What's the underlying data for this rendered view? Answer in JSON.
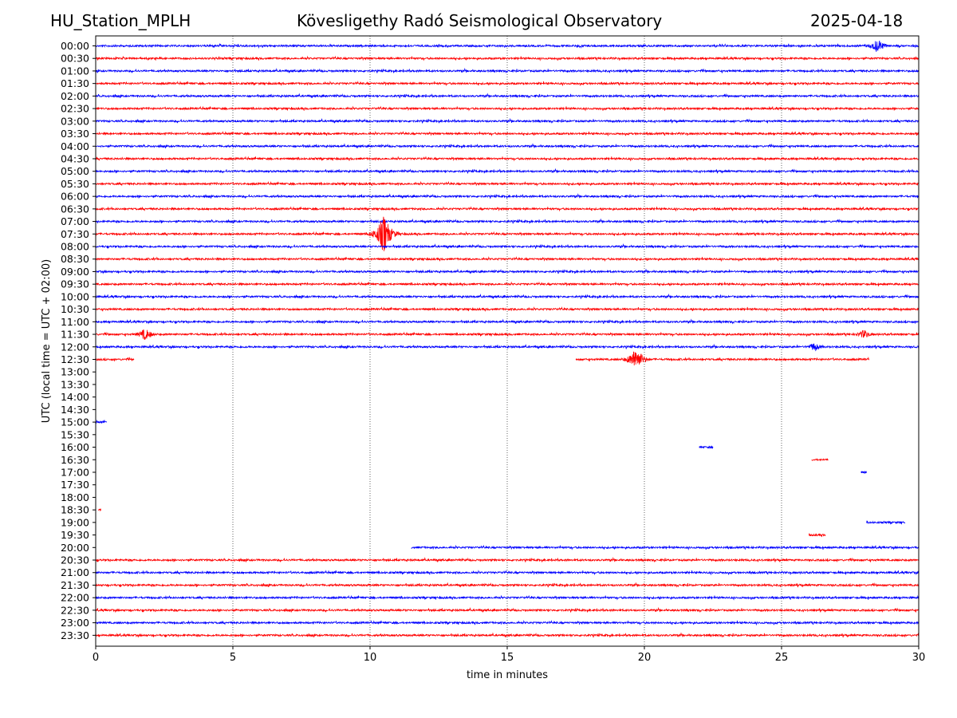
{
  "header": {
    "station": "HU_Station_MPLH",
    "observatory": "Kövesligethy Radó Seismological Observatory",
    "date": "2025-04-18"
  },
  "chart_data": {
    "type": "line",
    "description_kind": "helicorder",
    "xlabel": "time in minutes",
    "ylabel": "UTC (local time = UTC + 02:00)",
    "xlim": [
      0,
      30
    ],
    "xticks": [
      0,
      5,
      10,
      15,
      20,
      25,
      30
    ],
    "grid": "vertical dotted lines at 5-minute ticks",
    "colors": [
      "#0000ff",
      "#ff0000"
    ],
    "rows": [
      {
        "label": "00:00",
        "color": "#0000ff",
        "segments": [
          [
            0,
            30
          ]
        ],
        "events": [
          {
            "t": 28.5,
            "amp": 9
          }
        ]
      },
      {
        "label": "00:30",
        "color": "#ff0000",
        "segments": [
          [
            0,
            30
          ]
        ],
        "events": []
      },
      {
        "label": "01:00",
        "color": "#0000ff",
        "segments": [
          [
            0,
            30
          ]
        ],
        "events": []
      },
      {
        "label": "01:30",
        "color": "#ff0000",
        "segments": [
          [
            0,
            30
          ]
        ],
        "events": []
      },
      {
        "label": "02:00",
        "color": "#0000ff",
        "segments": [
          [
            0,
            30
          ]
        ],
        "events": []
      },
      {
        "label": "02:30",
        "color": "#ff0000",
        "segments": [
          [
            0,
            30
          ]
        ],
        "events": []
      },
      {
        "label": "03:00",
        "color": "#0000ff",
        "segments": [
          [
            0,
            30
          ]
        ],
        "events": []
      },
      {
        "label": "03:30",
        "color": "#ff0000",
        "segments": [
          [
            0,
            30
          ]
        ],
        "events": []
      },
      {
        "label": "04:00",
        "color": "#0000ff",
        "segments": [
          [
            0,
            30
          ]
        ],
        "events": []
      },
      {
        "label": "04:30",
        "color": "#ff0000",
        "segments": [
          [
            0,
            30
          ]
        ],
        "events": []
      },
      {
        "label": "05:00",
        "color": "#0000ff",
        "segments": [
          [
            0,
            30
          ]
        ],
        "events": []
      },
      {
        "label": "05:30",
        "color": "#ff0000",
        "segments": [
          [
            0,
            30
          ]
        ],
        "events": []
      },
      {
        "label": "06:00",
        "color": "#0000ff",
        "segments": [
          [
            0,
            30
          ]
        ],
        "events": []
      },
      {
        "label": "06:30",
        "color": "#ff0000",
        "segments": [
          [
            0,
            30
          ]
        ],
        "events": []
      },
      {
        "label": "07:00",
        "color": "#0000ff",
        "segments": [
          [
            0,
            30
          ]
        ],
        "events": []
      },
      {
        "label": "07:30",
        "color": "#ff0000",
        "segments": [
          [
            0,
            30
          ]
        ],
        "events": [
          {
            "t": 10.5,
            "amp": 26
          }
        ]
      },
      {
        "label": "08:00",
        "color": "#0000ff",
        "segments": [
          [
            0,
            30
          ]
        ],
        "events": []
      },
      {
        "label": "08:30",
        "color": "#ff0000",
        "segments": [
          [
            0,
            30
          ]
        ],
        "events": []
      },
      {
        "label": "09:00",
        "color": "#0000ff",
        "segments": [
          [
            0,
            30
          ]
        ],
        "events": []
      },
      {
        "label": "09:30",
        "color": "#ff0000",
        "segments": [
          [
            0,
            30
          ]
        ],
        "events": []
      },
      {
        "label": "10:00",
        "color": "#0000ff",
        "segments": [
          [
            0,
            30
          ]
        ],
        "events": []
      },
      {
        "label": "10:30",
        "color": "#ff0000",
        "segments": [
          [
            0,
            30
          ]
        ],
        "events": []
      },
      {
        "label": "11:00",
        "color": "#0000ff",
        "segments": [
          [
            0,
            30
          ]
        ],
        "events": []
      },
      {
        "label": "11:30",
        "color": "#ff0000",
        "segments": [
          [
            0,
            30
          ]
        ],
        "events": [
          {
            "t": 1.8,
            "amp": 8
          },
          {
            "t": 28.0,
            "amp": 6
          }
        ]
      },
      {
        "label": "12:00",
        "color": "#0000ff",
        "segments": [
          [
            0,
            30
          ]
        ],
        "events": [
          {
            "t": 26.2,
            "amp": 6
          }
        ]
      },
      {
        "label": "12:30",
        "color": "#ff0000",
        "segments": [
          [
            0,
            1.4
          ],
          [
            17.5,
            28.2
          ]
        ],
        "events": [
          {
            "t": 19.7,
            "amp": 16
          }
        ]
      },
      {
        "label": "13:00",
        "color": "#0000ff",
        "segments": [],
        "events": []
      },
      {
        "label": "13:30",
        "color": "#ff0000",
        "segments": [],
        "events": []
      },
      {
        "label": "14:00",
        "color": "#0000ff",
        "segments": [],
        "events": []
      },
      {
        "label": "14:30",
        "color": "#ff0000",
        "segments": [],
        "events": []
      },
      {
        "label": "15:00",
        "color": "#0000ff",
        "segments": [
          [
            0,
            0.4
          ]
        ],
        "events": []
      },
      {
        "label": "15:30",
        "color": "#ff0000",
        "segments": [],
        "events": []
      },
      {
        "label": "16:00",
        "color": "#0000ff",
        "segments": [
          [
            22.0,
            22.5
          ]
        ],
        "events": []
      },
      {
        "label": "16:30",
        "color": "#ff0000",
        "segments": [
          [
            26.1,
            26.7
          ]
        ],
        "events": []
      },
      {
        "label": "17:00",
        "color": "#0000ff",
        "segments": [
          [
            27.9,
            28.1
          ]
        ],
        "events": []
      },
      {
        "label": "17:30",
        "color": "#ff0000",
        "segments": [],
        "events": []
      },
      {
        "label": "18:00",
        "color": "#0000ff",
        "segments": [],
        "events": []
      },
      {
        "label": "18:30",
        "color": "#ff0000",
        "segments": [
          [
            0.1,
            0.2
          ]
        ],
        "events": []
      },
      {
        "label": "19:00",
        "color": "#0000ff",
        "segments": [
          [
            28.1,
            29.5
          ]
        ],
        "events": []
      },
      {
        "label": "19:30",
        "color": "#ff0000",
        "segments": [
          [
            26.0,
            26.6
          ]
        ],
        "events": []
      },
      {
        "label": "20:00",
        "color": "#0000ff",
        "segments": [
          [
            11.5,
            30
          ]
        ],
        "events": []
      },
      {
        "label": "20:30",
        "color": "#ff0000",
        "segments": [
          [
            0,
            30
          ]
        ],
        "events": []
      },
      {
        "label": "21:00",
        "color": "#0000ff",
        "segments": [
          [
            0,
            30
          ]
        ],
        "events": []
      },
      {
        "label": "21:30",
        "color": "#ff0000",
        "segments": [
          [
            0,
            30
          ]
        ],
        "events": []
      },
      {
        "label": "22:00",
        "color": "#0000ff",
        "segments": [
          [
            0,
            30
          ]
        ],
        "events": []
      },
      {
        "label": "22:30",
        "color": "#ff0000",
        "segments": [
          [
            0,
            30
          ]
        ],
        "events": []
      },
      {
        "label": "23:00",
        "color": "#0000ff",
        "segments": [
          [
            0,
            30
          ]
        ],
        "events": []
      },
      {
        "label": "23:30",
        "color": "#ff0000",
        "segments": [
          [
            0,
            30
          ]
        ],
        "events": []
      }
    ]
  }
}
